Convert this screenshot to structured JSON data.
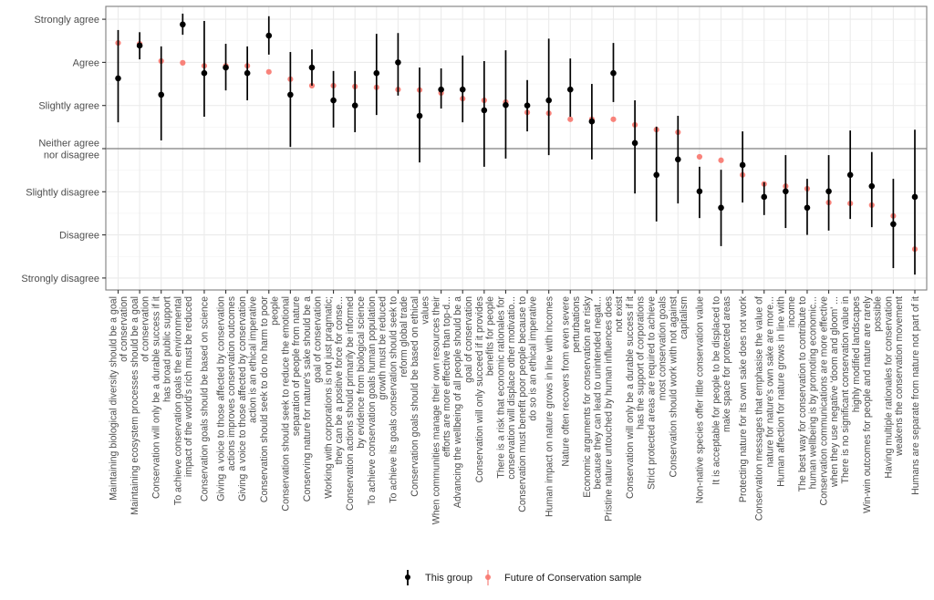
{
  "chart_data": {
    "type": "scatter",
    "subtype": "pointrange",
    "title": "",
    "xlabel": "",
    "ylabel": "",
    "y_scale": {
      "ticks": [
        3,
        2,
        1,
        0,
        -1,
        -2,
        -3
      ],
      "tick_labels": [
        "Strongly agree",
        "Agree",
        "Slightly agree",
        "Neither agree\nnor disagree",
        "Slightly disagree",
        "Disagree",
        "Strongly disagree"
      ],
      "ylim": [
        -3.3,
        3.3
      ],
      "reference_line": 0
    },
    "grid": true,
    "legend_position": "bottom",
    "series": [
      {
        "name": "This group",
        "color": "#000000",
        "has_error_bars": true
      },
      {
        "name": "Future of Conservation sample",
        "color": "#f8766d",
        "has_error_bars": false
      }
    ],
    "categories": [
      "Maintaining biological diversity should be a goal\nof conservation",
      "Maintaining ecosystem processes should be a goal\nof conservation",
      "Conservation will only be a durable success if it\nhas broad public support",
      "To achieve conservation goals the environmental\nimpact of the world's rich must be reduced",
      "Conservation goals should be based on science",
      "Giving a voice to those affected by conservation\nactions improves conservation outcomes",
      "Giving a voice to those affected by conservation\naction is an ethical imperative",
      "Conservation should seek to do no harm to poor\npeople",
      "Conservation should seek to reduce the emotional\nseparation of people from nature",
      "Conserving nature for nature's sake should be a\ngoal of conservation",
      "Working with corporations is not just pragmatic;\nthey can be a positive force for conse...",
      "Conservation actions should primarily be informed\nby evidence from biological science",
      "To achieve conservation goals human population\ngrowth must be reduced",
      "To achieve its goals conservation should seek to\nreform global trade",
      "Conservation goals should be based on ethical\nvalues",
      "When communities manage their own resources their\nefforts are more effective than top-d...",
      "Advancing the wellbeing of all people should be a\ngoal of conservation",
      "Conservation will only succeed if it provides\nbenefits for people",
      "There is a risk that economic rationales for\nconservation will displace other motivatio...",
      "Conservation must benefit poor people because to\ndo so is an ethical imperative",
      "Human impact on nature grows in line with incomes",
      "Nature often recovers from even severe\nperturbations",
      "Economic arguments for conservation are risky\nbecause they can lead to unintended negat...",
      "Pristine nature untouched by human influences does\nnot exist",
      "Conservation will only be a durable success if it\nhas the support of corporations",
      "Strict protected areas are required to achieve\nmost conservation goals",
      "Conservation should work with not against\ncapitalism",
      "Non-native species offer little conservation value",
      "It is acceptable for people to be displaced to\nmake space for protected areas",
      "Protecting nature for its own sake does not work",
      "Conservation messages that emphasise the value of\nnature for nature's own sake are more...",
      "Human affection for nature grows in line with\nincome",
      "The best way for conservation to contribute to\nhuman wellbeing is by promoting economic...",
      "Conservation communications are more effective\nwhen they use negative 'doom and gloom' ...",
      "There is no significant conservation value in\nhighly modified landscapes",
      "Win-win outcomes for people and nature are rarely\npossible",
      "Having multiple rationales for conservation\nweakens the conservation movement",
      "Humans are separate from nature not part of it"
    ],
    "this_group": {
      "mean": [
        1.63,
        2.39,
        1.25,
        2.88,
        1.75,
        1.88,
        1.75,
        2.62,
        1.25,
        1.88,
        1.12,
        1.0,
        1.75,
        2.0,
        0.76,
        1.37,
        1.37,
        0.89,
        1.01,
        1.0,
        1.12,
        1.37,
        0.63,
        1.75,
        0.13,
        -0.61,
        -0.25,
        -0.99,
        -1.37,
        -0.38,
        -1.12,
        -0.99,
        -1.37,
        -0.99,
        -0.61,
        -0.87,
        -1.75,
        -1.12
      ],
      "upper": [
        2.75,
        2.7,
        2.37,
        3.13,
        2.96,
        2.43,
        2.37,
        3.07,
        2.24,
        2.3,
        1.8,
        1.8,
        2.66,
        2.68,
        1.88,
        1.86,
        2.16,
        2.03,
        2.28,
        1.59,
        2.55,
        2.09,
        1.5,
        2.45,
        1.12,
        0.51,
        0.76,
        -0.42,
        -0.49,
        0.4,
        -0.78,
        -0.15,
        -0.7,
        -0.15,
        0.42,
        -0.08,
        -0.7,
        0.44
      ],
      "lower": [
        0.61,
        2.07,
        0.19,
        2.64,
        0.74,
        1.35,
        1.12,
        2.18,
        0.04,
        1.46,
        0.49,
        0.38,
        0.78,
        1.23,
        -0.32,
        0.93,
        0.61,
        -0.42,
        -0.23,
        0.4,
        -0.15,
        0.74,
        -0.25,
        1.08,
        -1.04,
        -1.69,
        -1.27,
        -1.61,
        -2.26,
        -1.25,
        -1.54,
        -1.84,
        -2.0,
        -1.9,
        -1.63,
        -1.82,
        -2.77,
        -2.92
      ]
    },
    "future_of_conservation_sample": {
      "mean": [
        2.45,
        2.43,
        2.03,
        1.99,
        1.92,
        1.92,
        1.92,
        1.78,
        1.61,
        1.46,
        1.46,
        1.44,
        1.42,
        1.37,
        1.36,
        1.29,
        1.16,
        1.12,
        1.08,
        0.84,
        0.82,
        0.68,
        0.68,
        0.68,
        0.55,
        0.44,
        0.38,
        -0.19,
        -0.27,
        -0.61,
        -0.82,
        -0.87,
        -0.93,
        -1.25,
        -1.27,
        -1.31,
        -1.56,
        -2.33
      ]
    }
  }
}
